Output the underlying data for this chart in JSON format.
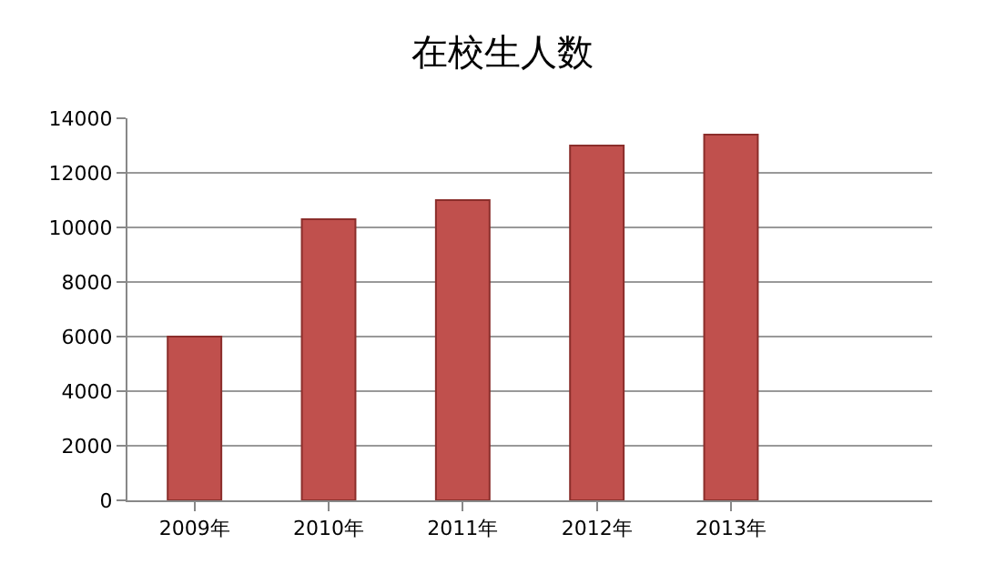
{
  "chart_data": {
    "type": "bar",
    "title": "在校生人数",
    "categories": [
      "2009年",
      "2010年",
      "2011年",
      "2012年",
      "2013年",
      null
    ],
    "values": [
      6000,
      10300,
      11000,
      13000,
      13400,
      null
    ],
    "color": "#c0504d",
    "ylim": [
      0,
      14000
    ],
    "yticks": [
      0,
      2000,
      4000,
      6000,
      8000,
      10000,
      12000,
      14000
    ],
    "grid": "y"
  }
}
